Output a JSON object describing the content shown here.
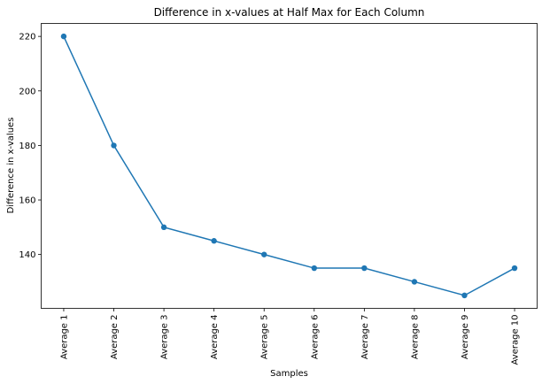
{
  "chart_data": {
    "type": "line",
    "title": "Difference in x-values at Half Max for Each Column",
    "xlabel": "Samples",
    "ylabel": "Difference in x-values",
    "categories": [
      "Average 1",
      "Average 2",
      "Average 3",
      "Average 4",
      "Average 5",
      "Average 6",
      "Average 7",
      "Average 8",
      "Average 9",
      "Average 10"
    ],
    "series": [
      {
        "values": [
          220,
          180,
          150,
          145,
          140,
          135,
          135,
          130,
          125,
          135
        ]
      }
    ],
    "ylim": [
      120.25,
      224.75
    ],
    "yticks": [
      140,
      160,
      180,
      200,
      220
    ],
    "grid": false,
    "marker": "circle",
    "color": "#1f77b4"
  }
}
